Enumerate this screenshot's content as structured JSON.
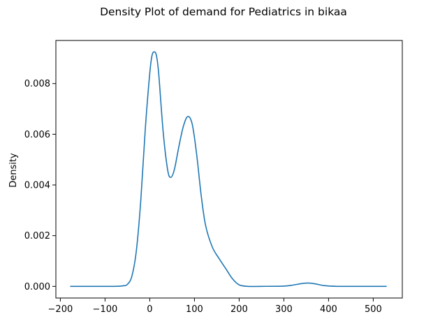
{
  "chart_data": {
    "type": "line",
    "title": "Density Plot of demand for Pediatrics in bikaa",
    "xlabel": "",
    "ylabel": "Density",
    "xlim": [
      -210,
      565
    ],
    "ylim": [
      -0.00046,
      0.0097
    ],
    "x_ticks": [
      -200,
      -100,
      0,
      100,
      200,
      300,
      400,
      500
    ],
    "x_tick_labels": [
      "−200",
      "−100",
      "0",
      "100",
      "200",
      "300",
      "400",
      "500"
    ],
    "y_ticks": [
      0.0,
      0.002,
      0.004,
      0.006,
      0.008
    ],
    "y_tick_labels": [
      "0.000",
      "0.002",
      "0.004",
      "0.006",
      "0.008"
    ],
    "grid": false,
    "legend": "none",
    "series": [
      {
        "color": "#1f77b4",
        "points": [
          [
            -178,
            0.0
          ],
          [
            -120,
            0.0
          ],
          [
            -80,
            0.0
          ],
          [
            -60,
            2e-05
          ],
          [
            -50,
            8e-05
          ],
          [
            -40,
            0.0004
          ],
          [
            -30,
            0.0014
          ],
          [
            -20,
            0.0034
          ],
          [
            -10,
            0.0062
          ],
          [
            0,
            0.0084
          ],
          [
            5,
            0.0091
          ],
          [
            10,
            0.00925
          ],
          [
            15,
            0.0091
          ],
          [
            20,
            0.0084
          ],
          [
            30,
            0.0061
          ],
          [
            40,
            0.0046
          ],
          [
            47,
            0.0043
          ],
          [
            55,
            0.0046
          ],
          [
            65,
            0.0055
          ],
          [
            75,
            0.0063
          ],
          [
            85,
            0.0067
          ],
          [
            95,
            0.0064
          ],
          [
            105,
            0.0052
          ],
          [
            115,
            0.0036
          ],
          [
            125,
            0.0024
          ],
          [
            140,
            0.00155
          ],
          [
            155,
            0.0011
          ],
          [
            170,
            0.0007
          ],
          [
            185,
            0.0003
          ],
          [
            200,
            6e-05
          ],
          [
            220,
            0.0
          ],
          [
            250,
            0.0
          ],
          [
            300,
            1e-05
          ],
          [
            320,
            5e-05
          ],
          [
            340,
            0.00011
          ],
          [
            355,
            0.00013
          ],
          [
            370,
            0.0001
          ],
          [
            390,
            3e-05
          ],
          [
            420,
            0.0
          ],
          [
            480,
            0.0
          ],
          [
            530,
            0.0
          ]
        ]
      }
    ]
  }
}
